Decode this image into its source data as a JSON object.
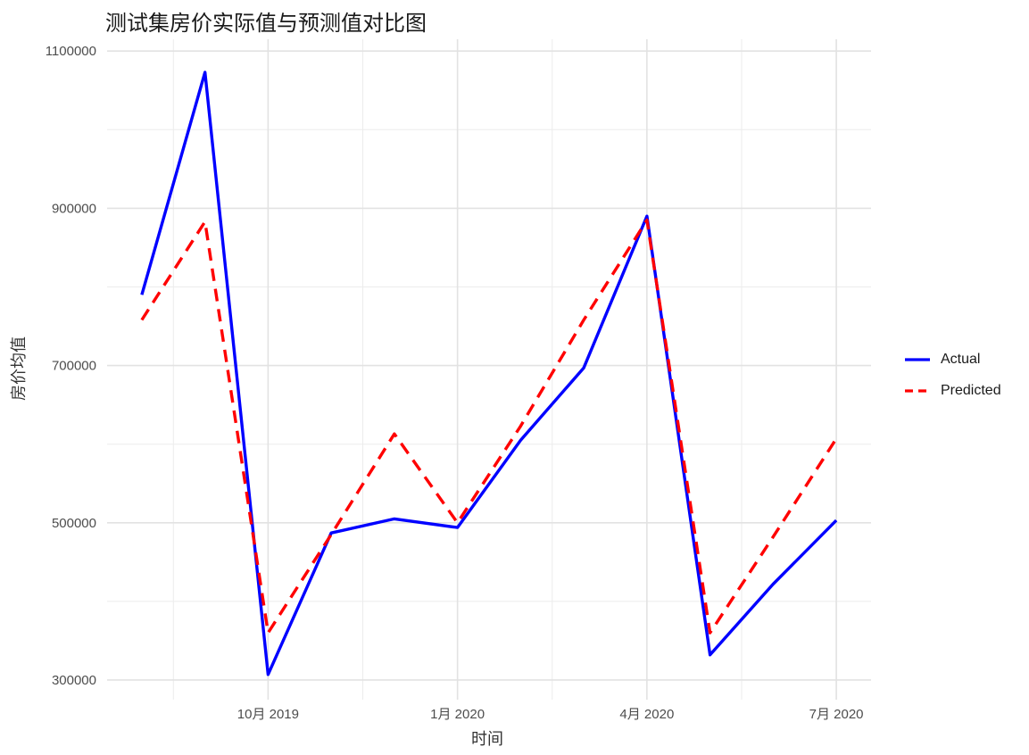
{
  "chart_data": {
    "type": "line",
    "title": "测试集房价实际值与预测值对比图",
    "xlabel": "时间",
    "ylabel": "房价均值",
    "x": [
      "2019-08",
      "2019-09",
      "2019-10",
      "2019-11",
      "2019-12",
      "2020-01",
      "2020-02",
      "2020-03",
      "2020-04",
      "2020-05",
      "2020-06",
      "2020-07"
    ],
    "x_ticks": [
      {
        "date": "2019-10",
        "label": "10月 2019"
      },
      {
        "date": "2020-01",
        "label": "1月 2020"
      },
      {
        "date": "2020-04",
        "label": "4月 2020"
      },
      {
        "date": "2020-07",
        "label": "7月 2020"
      }
    ],
    "y_ticks": [
      300000,
      500000,
      700000,
      900000,
      1100000
    ],
    "ylim": [
      275000,
      1115000
    ],
    "grid": true,
    "legend_position": "right",
    "series": [
      {
        "name": "Actual",
        "color": "#0000ff",
        "style": "solid",
        "values": [
          790000,
          1073000,
          307000,
          487000,
          505000,
          494000,
          605000,
          697000,
          890000,
          332000,
          422000,
          503000
        ]
      },
      {
        "name": "Predicted",
        "color": "#ff0000",
        "style": "dashed",
        "values": [
          758000,
          883000,
          360000,
          485000,
          613000,
          500000,
          623000,
          758000,
          885000,
          360000,
          482000,
          607000
        ]
      }
    ]
  }
}
